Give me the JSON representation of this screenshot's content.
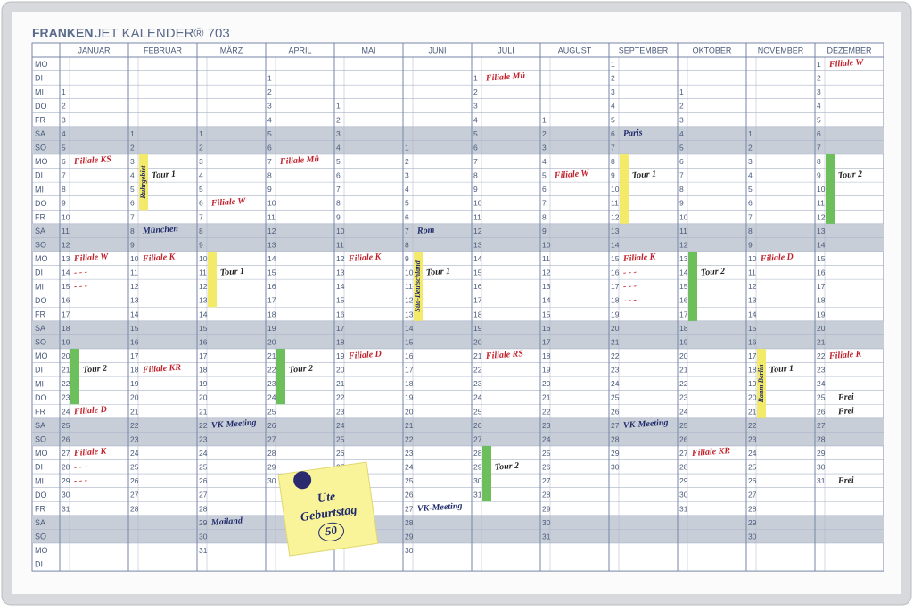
{
  "header": {
    "brand": "FRANKEN",
    "title": "JET KALENDER® 703"
  },
  "weekdays": [
    "MO",
    "DI",
    "MI",
    "DO",
    "FR",
    "SA",
    "SO"
  ],
  "months": [
    {
      "name": "JANUAR",
      "first": "MI",
      "days": [
        1,
        2,
        3,
        4,
        5,
        6,
        7,
        8,
        9,
        10,
        11,
        12,
        13,
        14,
        15,
        16,
        17,
        18,
        19,
        20,
        21,
        22,
        23,
        24,
        25,
        26,
        27,
        28,
        29,
        30,
        31
      ]
    },
    {
      "name": "FEBRUAR",
      "first": "SA",
      "days": [
        1,
        2,
        3,
        4,
        5,
        6,
        7,
        8,
        9,
        10,
        11,
        12,
        13,
        14,
        15,
        16,
        17,
        18,
        19,
        20,
        21,
        22,
        23,
        24,
        25,
        26,
        27,
        28
      ]
    },
    {
      "name": "MÄRZ",
      "first": "SA",
      "days": [
        1,
        2,
        3,
        4,
        5,
        6,
        7,
        8,
        9,
        10,
        11,
        12,
        13,
        14,
        15,
        16,
        17,
        18,
        19,
        20,
        21,
        22,
        23,
        24,
        25,
        26,
        27,
        28,
        29,
        30,
        31
      ]
    },
    {
      "name": "APRIL",
      "first": "DI",
      "days": [
        1,
        2,
        3,
        4,
        5,
        6,
        7,
        8,
        9,
        10,
        11,
        12,
        13,
        14,
        15,
        16,
        17,
        18,
        19,
        20,
        21,
        22,
        23,
        24,
        25,
        26,
        27,
        28,
        29,
        30
      ]
    },
    {
      "name": "MAI",
      "first": "DO",
      "days": [
        1,
        2,
        3,
        4,
        5,
        6,
        7,
        8,
        9,
        10,
        11,
        12,
        13,
        14,
        15,
        16,
        17,
        18,
        19,
        20,
        21,
        22,
        23,
        24,
        25,
        26,
        27,
        28,
        29,
        30,
        31
      ]
    },
    {
      "name": "JUNI",
      "first": "SO",
      "days": [
        1,
        2,
        3,
        4,
        5,
        6,
        7,
        8,
        9,
        10,
        11,
        12,
        13,
        14,
        15,
        16,
        17,
        18,
        19,
        20,
        21,
        22,
        23,
        24,
        25,
        26,
        27,
        28,
        29,
        30
      ]
    },
    {
      "name": "JULI",
      "first": "DI",
      "days": [
        1,
        2,
        3,
        4,
        5,
        6,
        7,
        8,
        9,
        10,
        11,
        12,
        13,
        14,
        15,
        16,
        17,
        18,
        19,
        20,
        21,
        22,
        23,
        24,
        25,
        26,
        27,
        28,
        29,
        30,
        31
      ]
    },
    {
      "name": "AUGUST",
      "first": "FR",
      "days": [
        1,
        2,
        3,
        4,
        5,
        6,
        7,
        8,
        9,
        10,
        11,
        12,
        13,
        14,
        15,
        16,
        17,
        18,
        19,
        20,
        21,
        22,
        23,
        24,
        25,
        26,
        27,
        28,
        29,
        30,
        31
      ]
    },
    {
      "name": "SEPTEMBER",
      "first": "MO",
      "days": [
        1,
        2,
        3,
        4,
        5,
        6,
        7,
        8,
        9,
        10,
        11,
        12,
        13,
        14,
        15,
        16,
        17,
        18,
        19,
        20,
        21,
        22,
        23,
        24,
        25,
        26,
        27,
        28,
        29,
        30
      ]
    },
    {
      "name": "OKTOBER",
      "first": "MI",
      "days": [
        1,
        2,
        3,
        4,
        5,
        6,
        7,
        8,
        9,
        10,
        11,
        12,
        13,
        14,
        15,
        16,
        17,
        18,
        19,
        20,
        21,
        22,
        23,
        24,
        25,
        26,
        27,
        28,
        29,
        30,
        31
      ]
    },
    {
      "name": "NOVEMBER",
      "first": "SA",
      "days": [
        1,
        2,
        3,
        4,
        5,
        6,
        7,
        8,
        9,
        10,
        11,
        12,
        13,
        14,
        15,
        16,
        17,
        18,
        19,
        20,
        21,
        22,
        23,
        24,
        25,
        26,
        27,
        28,
        29,
        30
      ]
    },
    {
      "name": "DEZEMBER",
      "first": "MO",
      "days": [
        1,
        2,
        3,
        4,
        5,
        6,
        7,
        8,
        9,
        10,
        11,
        12,
        13,
        14,
        15,
        16,
        17,
        18,
        19,
        20,
        21,
        22,
        23,
        24,
        25,
        26,
        27,
        28,
        29,
        30,
        31
      ]
    }
  ],
  "strips": [
    {
      "month": "JANUAR",
      "from": 20,
      "to": 23,
      "color": "#6cbf5a"
    },
    {
      "month": "FEBRUAR",
      "from": 3,
      "to": 6,
      "color": "#f4ea6a",
      "text": "Ruhrgebiet"
    },
    {
      "month": "MÄRZ",
      "from": 10,
      "to": 13,
      "color": "#f4ea6a"
    },
    {
      "month": "APRIL",
      "from": 21,
      "to": 24,
      "color": "#6cbf5a"
    },
    {
      "month": "JUNI",
      "from": 9,
      "to": 13,
      "color": "#f4ea6a",
      "text": "Süd-Deutschland"
    },
    {
      "month": "JULI",
      "from": 28,
      "to": 31,
      "color": "#6cbf5a"
    },
    {
      "month": "SEPTEMBER",
      "from": 8,
      "to": 12,
      "color": "#f4ea6a"
    },
    {
      "month": "OKTOBER",
      "from": 13,
      "to": 17,
      "color": "#6cbf5a"
    },
    {
      "month": "NOVEMBER",
      "from": 17,
      "to": 21,
      "color": "#f4ea6a",
      "text": "Raum Berlin"
    },
    {
      "month": "DEZEMBER",
      "from": 8,
      "to": 12,
      "color": "#6cbf5a"
    }
  ],
  "notes": [
    {
      "month": "JANUAR",
      "day": 6,
      "text": "Filiale KS",
      "color": "#c0202a"
    },
    {
      "month": "JANUAR",
      "day": 13,
      "text": "Filiale W",
      "color": "#c0202a"
    },
    {
      "month": "JANUAR",
      "day": 14,
      "text": "- - -",
      "color": "#c0202a"
    },
    {
      "month": "JANUAR",
      "day": 15,
      "text": "- - -",
      "color": "#c0202a"
    },
    {
      "month": "JANUAR",
      "day": 21,
      "text": "Tour 2",
      "color": "#222"
    },
    {
      "month": "JANUAR",
      "day": 24,
      "text": "Filiale D",
      "color": "#c0202a"
    },
    {
      "month": "JANUAR",
      "day": 27,
      "text": "Filiale K",
      "color": "#c0202a"
    },
    {
      "month": "JANUAR",
      "day": 28,
      "text": "- - -",
      "color": "#c0202a"
    },
    {
      "month": "JANUAR",
      "day": 29,
      "text": "- - -",
      "color": "#c0202a"
    },
    {
      "month": "FEBRUAR",
      "day": 4,
      "text": "Tour 1",
      "color": "#222"
    },
    {
      "month": "FEBRUAR",
      "day": 8,
      "text": "München",
      "color": "#1e2a6a"
    },
    {
      "month": "FEBRUAR",
      "day": 10,
      "text": "Filiale K",
      "color": "#c0202a"
    },
    {
      "month": "FEBRUAR",
      "day": 18,
      "text": "Filiale KR",
      "color": "#c0202a"
    },
    {
      "month": "MÄRZ",
      "day": 6,
      "text": "Filiale W",
      "color": "#c0202a"
    },
    {
      "month": "MÄRZ",
      "day": 11,
      "text": "Tour 1",
      "color": "#222"
    },
    {
      "month": "MÄRZ",
      "day": 22,
      "text": "VK-Meeting",
      "color": "#1e2a6a"
    },
    {
      "month": "MÄRZ",
      "day": 29,
      "text": "Mailand",
      "color": "#1e2a6a"
    },
    {
      "month": "APRIL",
      "day": 7,
      "text": "Filiale Mü",
      "color": "#c0202a"
    },
    {
      "month": "APRIL",
      "day": 22,
      "text": "Tour 2",
      "color": "#222"
    },
    {
      "month": "MAI",
      "day": 12,
      "text": "Filiale K",
      "color": "#c0202a"
    },
    {
      "month": "MAI",
      "day": 19,
      "text": "Filiale D",
      "color": "#c0202a"
    },
    {
      "month": "JUNI",
      "day": 7,
      "text": "Rom",
      "color": "#1e2a6a"
    },
    {
      "month": "JUNI",
      "day": 10,
      "text": "Tour 1",
      "color": "#222"
    },
    {
      "month": "JUNI",
      "day": 27,
      "text": "VK-Meeting",
      "color": "#1e2a6a"
    },
    {
      "month": "JULI",
      "day": 1,
      "text": "Filiale Mü",
      "color": "#c0202a"
    },
    {
      "month": "JULI",
      "day": 21,
      "text": "Filiale RS",
      "color": "#c0202a"
    },
    {
      "month": "JULI",
      "day": 29,
      "text": "Tour 2",
      "color": "#222"
    },
    {
      "month": "AUGUST",
      "day": 5,
      "text": "Filiale W",
      "color": "#c0202a"
    },
    {
      "month": "SEPTEMBER",
      "day": 6,
      "text": "Paris",
      "color": "#1e2a6a"
    },
    {
      "month": "SEPTEMBER",
      "day": 9,
      "text": "Tour 1",
      "color": "#222"
    },
    {
      "month": "SEPTEMBER",
      "day": 15,
      "text": "Filiale K",
      "color": "#c0202a"
    },
    {
      "month": "SEPTEMBER",
      "day": 16,
      "text": "- - -",
      "color": "#c0202a"
    },
    {
      "month": "SEPTEMBER",
      "day": 17,
      "text": "- - -",
      "color": "#c0202a"
    },
    {
      "month": "SEPTEMBER",
      "day": 18,
      "text": "- - -",
      "color": "#c0202a"
    },
    {
      "month": "SEPTEMBER",
      "day": 27,
      "text": "VK-Meeting",
      "color": "#1e2a6a"
    },
    {
      "month": "OKTOBER",
      "day": 14,
      "text": "Tour 2",
      "color": "#222"
    },
    {
      "month": "OKTOBER",
      "day": 27,
      "text": "Filiale KR",
      "color": "#c0202a"
    },
    {
      "month": "NOVEMBER",
      "day": 10,
      "text": "Filiale D",
      "color": "#c0202a"
    },
    {
      "month": "NOVEMBER",
      "day": 18,
      "text": "Tour 1",
      "color": "#222"
    },
    {
      "month": "DEZEMBER",
      "day": 1,
      "text": "Filiale W",
      "color": "#c0202a"
    },
    {
      "month": "DEZEMBER",
      "day": 9,
      "text": "Tour 2",
      "color": "#222"
    },
    {
      "month": "DEZEMBER",
      "day": 22,
      "text": "Filiale K",
      "color": "#c0202a"
    },
    {
      "month": "DEZEMBER",
      "day": 25,
      "text": "Frei",
      "color": "#222"
    },
    {
      "month": "DEZEMBER",
      "day": 26,
      "text": "Frei",
      "color": "#222"
    },
    {
      "month": "DEZEMBER",
      "day": 31,
      "text": "Frei",
      "color": "#222"
    }
  ],
  "sticky": {
    "lines": [
      "Ute",
      "Geburtstag",
      "50"
    ]
  }
}
